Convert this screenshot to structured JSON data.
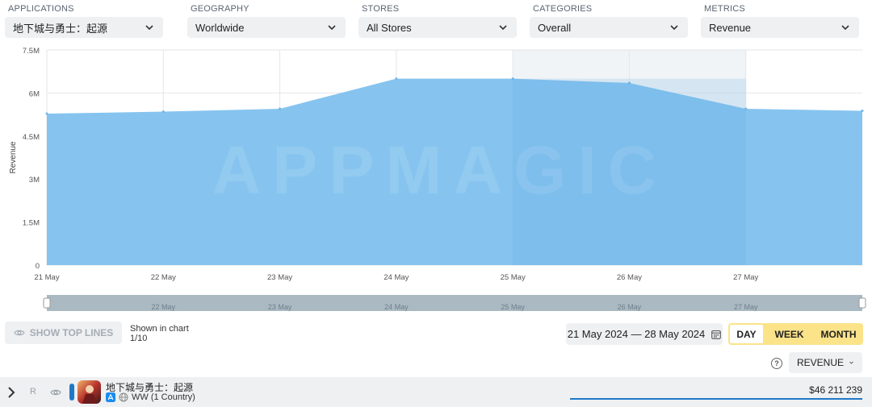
{
  "filters": [
    {
      "label": "APPLICATIONS",
      "value": "地下城与勇士：起源"
    },
    {
      "label": "GEOGRAPHY",
      "value": "Worldwide"
    },
    {
      "label": "STORES",
      "value": "All Stores"
    },
    {
      "label": "CATEGORIES",
      "value": "Overall"
    },
    {
      "label": "METRICS",
      "value": "Revenue"
    }
  ],
  "chart_data": {
    "type": "area",
    "x": [
      "21 May",
      "22 May",
      "23 May",
      "24 May",
      "25 May",
      "26 May",
      "27 May",
      "28 May"
    ],
    "series": [
      {
        "values": [
          5.28,
          5.35,
          5.45,
          6.5,
          6.5,
          6.35,
          5.45,
          5.38
        ]
      }
    ],
    "ylabel": "Revenue",
    "yticks": [
      "0",
      "1.5M",
      "3M",
      "4.5M",
      "6M",
      "7.5M"
    ],
    "ylim": [
      0,
      7.5
    ],
    "xtick_labels": [
      "21 May",
      "22 May",
      "23 May",
      "24 May",
      "25 May",
      "26 May",
      "27 May"
    ],
    "navigator_labels": [
      "22 May",
      "23 May",
      "24 May",
      "25 May",
      "26 May",
      "27 May"
    ],
    "watermark": "APPMAGIC",
    "color": "#7fc1ee",
    "grid": true
  },
  "controls": {
    "show_top_lines": "SHOW TOP LINES",
    "shown_in_chart": "Shown in chart",
    "shown_count": "1/10",
    "date_range": "21 May 2024 — 28 May 2024",
    "periods": [
      "DAY",
      "WEEK",
      "MONTH"
    ],
    "help": "?",
    "metric_dropdown": "REVENUE"
  },
  "row": {
    "rank_letter": "R",
    "app_name": "地下城与勇士：起源",
    "region": "WW (1 Country)",
    "revenue": "$46 211 239",
    "color": "#1f78c8"
  }
}
